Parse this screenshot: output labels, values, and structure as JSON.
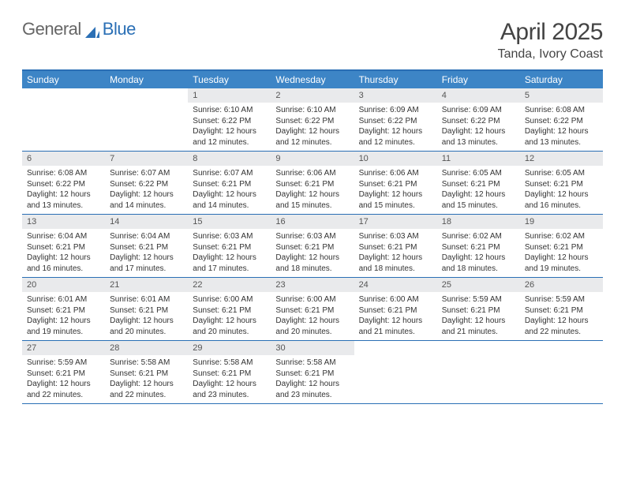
{
  "brand": {
    "part1": "General",
    "part2": "Blue"
  },
  "title": "April 2025",
  "location": "Tanda, Ivory Coast",
  "colors": {
    "header_bg": "#3d85c6",
    "border": "#2a6fb5",
    "daynum_bg": "#e9eaec",
    "text": "#333333",
    "title_text": "#444444"
  },
  "daysOfWeek": [
    "Sunday",
    "Monday",
    "Tuesday",
    "Wednesday",
    "Thursday",
    "Friday",
    "Saturday"
  ],
  "weeks": [
    [
      null,
      null,
      {
        "n": "1",
        "sr": "Sunrise: 6:10 AM",
        "ss": "Sunset: 6:22 PM",
        "dl": "Daylight: 12 hours and 12 minutes."
      },
      {
        "n": "2",
        "sr": "Sunrise: 6:10 AM",
        "ss": "Sunset: 6:22 PM",
        "dl": "Daylight: 12 hours and 12 minutes."
      },
      {
        "n": "3",
        "sr": "Sunrise: 6:09 AM",
        "ss": "Sunset: 6:22 PM",
        "dl": "Daylight: 12 hours and 12 minutes."
      },
      {
        "n": "4",
        "sr": "Sunrise: 6:09 AM",
        "ss": "Sunset: 6:22 PM",
        "dl": "Daylight: 12 hours and 13 minutes."
      },
      {
        "n": "5",
        "sr": "Sunrise: 6:08 AM",
        "ss": "Sunset: 6:22 PM",
        "dl": "Daylight: 12 hours and 13 minutes."
      }
    ],
    [
      {
        "n": "6",
        "sr": "Sunrise: 6:08 AM",
        "ss": "Sunset: 6:22 PM",
        "dl": "Daylight: 12 hours and 13 minutes."
      },
      {
        "n": "7",
        "sr": "Sunrise: 6:07 AM",
        "ss": "Sunset: 6:22 PM",
        "dl": "Daylight: 12 hours and 14 minutes."
      },
      {
        "n": "8",
        "sr": "Sunrise: 6:07 AM",
        "ss": "Sunset: 6:21 PM",
        "dl": "Daylight: 12 hours and 14 minutes."
      },
      {
        "n": "9",
        "sr": "Sunrise: 6:06 AM",
        "ss": "Sunset: 6:21 PM",
        "dl": "Daylight: 12 hours and 15 minutes."
      },
      {
        "n": "10",
        "sr": "Sunrise: 6:06 AM",
        "ss": "Sunset: 6:21 PM",
        "dl": "Daylight: 12 hours and 15 minutes."
      },
      {
        "n": "11",
        "sr": "Sunrise: 6:05 AM",
        "ss": "Sunset: 6:21 PM",
        "dl": "Daylight: 12 hours and 15 minutes."
      },
      {
        "n": "12",
        "sr": "Sunrise: 6:05 AM",
        "ss": "Sunset: 6:21 PM",
        "dl": "Daylight: 12 hours and 16 minutes."
      }
    ],
    [
      {
        "n": "13",
        "sr": "Sunrise: 6:04 AM",
        "ss": "Sunset: 6:21 PM",
        "dl": "Daylight: 12 hours and 16 minutes."
      },
      {
        "n": "14",
        "sr": "Sunrise: 6:04 AM",
        "ss": "Sunset: 6:21 PM",
        "dl": "Daylight: 12 hours and 17 minutes."
      },
      {
        "n": "15",
        "sr": "Sunrise: 6:03 AM",
        "ss": "Sunset: 6:21 PM",
        "dl": "Daylight: 12 hours and 17 minutes."
      },
      {
        "n": "16",
        "sr": "Sunrise: 6:03 AM",
        "ss": "Sunset: 6:21 PM",
        "dl": "Daylight: 12 hours and 18 minutes."
      },
      {
        "n": "17",
        "sr": "Sunrise: 6:03 AM",
        "ss": "Sunset: 6:21 PM",
        "dl": "Daylight: 12 hours and 18 minutes."
      },
      {
        "n": "18",
        "sr": "Sunrise: 6:02 AM",
        "ss": "Sunset: 6:21 PM",
        "dl": "Daylight: 12 hours and 18 minutes."
      },
      {
        "n": "19",
        "sr": "Sunrise: 6:02 AM",
        "ss": "Sunset: 6:21 PM",
        "dl": "Daylight: 12 hours and 19 minutes."
      }
    ],
    [
      {
        "n": "20",
        "sr": "Sunrise: 6:01 AM",
        "ss": "Sunset: 6:21 PM",
        "dl": "Daylight: 12 hours and 19 minutes."
      },
      {
        "n": "21",
        "sr": "Sunrise: 6:01 AM",
        "ss": "Sunset: 6:21 PM",
        "dl": "Daylight: 12 hours and 20 minutes."
      },
      {
        "n": "22",
        "sr": "Sunrise: 6:00 AM",
        "ss": "Sunset: 6:21 PM",
        "dl": "Daylight: 12 hours and 20 minutes."
      },
      {
        "n": "23",
        "sr": "Sunrise: 6:00 AM",
        "ss": "Sunset: 6:21 PM",
        "dl": "Daylight: 12 hours and 20 minutes."
      },
      {
        "n": "24",
        "sr": "Sunrise: 6:00 AM",
        "ss": "Sunset: 6:21 PM",
        "dl": "Daylight: 12 hours and 21 minutes."
      },
      {
        "n": "25",
        "sr": "Sunrise: 5:59 AM",
        "ss": "Sunset: 6:21 PM",
        "dl": "Daylight: 12 hours and 21 minutes."
      },
      {
        "n": "26",
        "sr": "Sunrise: 5:59 AM",
        "ss": "Sunset: 6:21 PM",
        "dl": "Daylight: 12 hours and 22 minutes."
      }
    ],
    [
      {
        "n": "27",
        "sr": "Sunrise: 5:59 AM",
        "ss": "Sunset: 6:21 PM",
        "dl": "Daylight: 12 hours and 22 minutes."
      },
      {
        "n": "28",
        "sr": "Sunrise: 5:58 AM",
        "ss": "Sunset: 6:21 PM",
        "dl": "Daylight: 12 hours and 22 minutes."
      },
      {
        "n": "29",
        "sr": "Sunrise: 5:58 AM",
        "ss": "Sunset: 6:21 PM",
        "dl": "Daylight: 12 hours and 23 minutes."
      },
      {
        "n": "30",
        "sr": "Sunrise: 5:58 AM",
        "ss": "Sunset: 6:21 PM",
        "dl": "Daylight: 12 hours and 23 minutes."
      },
      null,
      null,
      null
    ]
  ]
}
